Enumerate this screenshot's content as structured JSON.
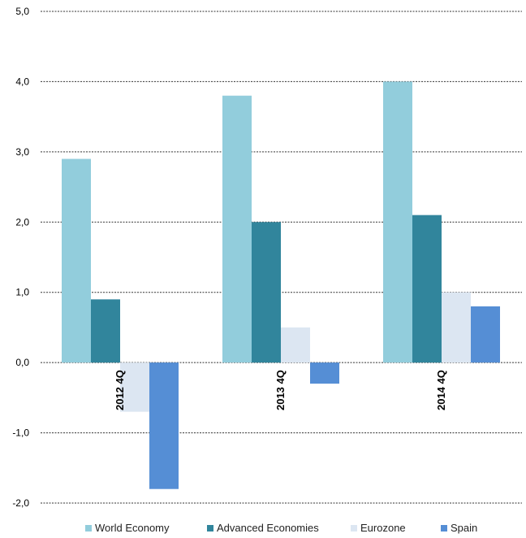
{
  "chart_data": {
    "type": "bar",
    "categories": [
      "2012 4Q",
      "2013 4Q",
      "2014 4Q"
    ],
    "series": [
      {
        "name": "World Economy",
        "color": "#92CDDC",
        "values": [
          2.9,
          3.8,
          4.0
        ]
      },
      {
        "name": "Advanced Economies",
        "color": "#31859C",
        "values": [
          0.9,
          2.0,
          2.1
        ]
      },
      {
        "name": "Eurozone",
        "color": "#DCE6F2",
        "values": [
          -0.7,
          0.5,
          1.0
        ]
      },
      {
        "name": "Spain",
        "color": "#558ED5",
        "values": [
          -1.8,
          -0.3,
          0.8
        ]
      }
    ],
    "ylim": [
      -2.0,
      5.0
    ],
    "yticks": [
      "-2,0",
      "-1,0",
      "0,0",
      "1,0",
      "2,0",
      "3,0",
      "4,0",
      "5,0"
    ],
    "grid": true,
    "legend_position": "bottom"
  }
}
